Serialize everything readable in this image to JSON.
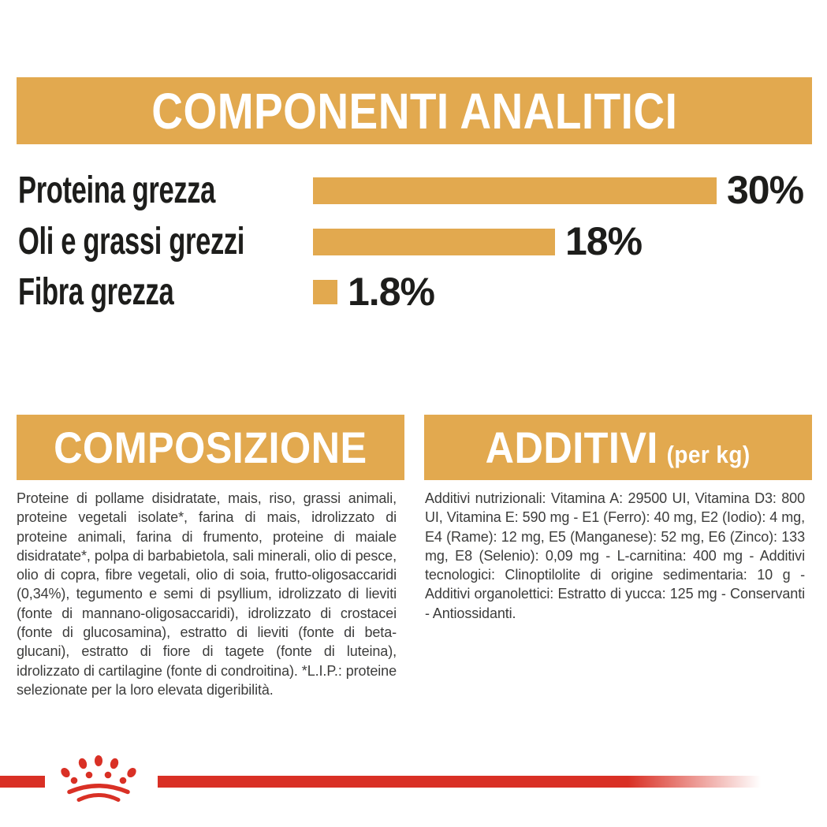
{
  "page": {
    "background": "#FFFFFF",
    "accent_gold": "#E2A94F",
    "accent_red": "#D93025",
    "heading_text_color": "#FFFFFF",
    "chart_text_color": "#1D1D1B",
    "body_text_color": "#3C3C3B"
  },
  "header": {
    "title": "COMPONENTI ANALITICI"
  },
  "chart_data": {
    "type": "bar",
    "orientation": "horizontal",
    "title": "COMPONENTI ANALITICI",
    "categories": [
      "Proteina grezza",
      "Oli e grassi grezzi",
      "Fibra grezza"
    ],
    "values": [
      30,
      18,
      1.8
    ],
    "value_labels": [
      "30%",
      "18%",
      "1.8%"
    ],
    "xlim": [
      0,
      30
    ],
    "bar_color": "#E2A94F",
    "grid": false,
    "legend": false
  },
  "composition": {
    "title": "COMPOSIZIONE",
    "body": "Proteine di pollame disidratate, mais, riso, grassi animali, proteine vegetali isolate*, farina di mais, idrolizzato di proteine animali, farina di frumento, proteine di maiale disidratate*, polpa di barbabietola, sali minerali, olio di pesce, olio di copra, fibre vegetali, olio di soia, frutto-oligosaccaridi (0,34%), tegumento e semi di psyllium, idrolizzato di lieviti (fonte di mannano-oligosaccaridi), idrolizzato di crostacei (fonte di glucosamina), estratto di lieviti (fonte di beta-glucani), estratto di fiore di tagete (fonte di luteina), idrolizzato di cartilagine (fonte di condroitina). *L.I.P.: proteine selezionate per la loro elevata digeribilità."
  },
  "additives": {
    "title": "ADDITIVI",
    "title_suffix": "(per kg)",
    "body": "Additivi nutrizionali: Vitamina A: 29500 UI, Vitamina D3: 800 UI, Vitamina E: 590 mg - E1 (Ferro): 40 mg, E2 (Iodio): 4 mg, E4 (Rame): 12 mg, E5 (Manganese): 52 mg, E6 (Zinco): 133 mg, E8 (Selenio): 0,09 mg - L-carnitina: 400 mg - Additivi tecnologici: Clinoptilolite di origine sedimentaria: 10 g - Additivi organolettici: Estratto di yucca: 125 mg - Conservanti - Antiossidanti."
  },
  "footer": {
    "logo": "royal-canin-crown"
  }
}
